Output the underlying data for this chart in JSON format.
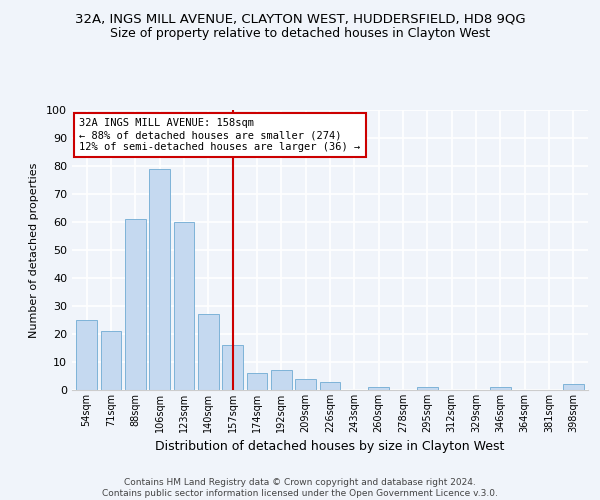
{
  "title": "32A, INGS MILL AVENUE, CLAYTON WEST, HUDDERSFIELD, HD8 9QG",
  "subtitle": "Size of property relative to detached houses in Clayton West",
  "xlabel": "Distribution of detached houses by size in Clayton West",
  "ylabel": "Number of detached properties",
  "bar_color": "#c5d9f0",
  "bar_edge_color": "#7eb3d8",
  "categories": [
    "54sqm",
    "71sqm",
    "88sqm",
    "106sqm",
    "123sqm",
    "140sqm",
    "157sqm",
    "174sqm",
    "192sqm",
    "209sqm",
    "226sqm",
    "243sqm",
    "260sqm",
    "278sqm",
    "295sqm",
    "312sqm",
    "329sqm",
    "346sqm",
    "364sqm",
    "381sqm",
    "398sqm"
  ],
  "values": [
    25,
    21,
    61,
    79,
    60,
    27,
    16,
    6,
    7,
    4,
    3,
    0,
    1,
    0,
    1,
    0,
    0,
    1,
    0,
    0,
    2
  ],
  "ylim": [
    0,
    100
  ],
  "yticks": [
    0,
    10,
    20,
    30,
    40,
    50,
    60,
    70,
    80,
    90,
    100
  ],
  "vline_x": 6,
  "vline_color": "#cc0000",
  "annotation_text": "32A INGS MILL AVENUE: 158sqm\n← 88% of detached houses are smaller (274)\n12% of semi-detached houses are larger (36) →",
  "annotation_box_color": "#ffffff",
  "annotation_box_edge": "#cc0000",
  "footer_line1": "Contains HM Land Registry data © Crown copyright and database right 2024.",
  "footer_line2": "Contains public sector information licensed under the Open Government Licence v.3.0.",
  "background_color": "#f0f4fa",
  "grid_color": "#ffffff",
  "spine_color": "#cccccc"
}
